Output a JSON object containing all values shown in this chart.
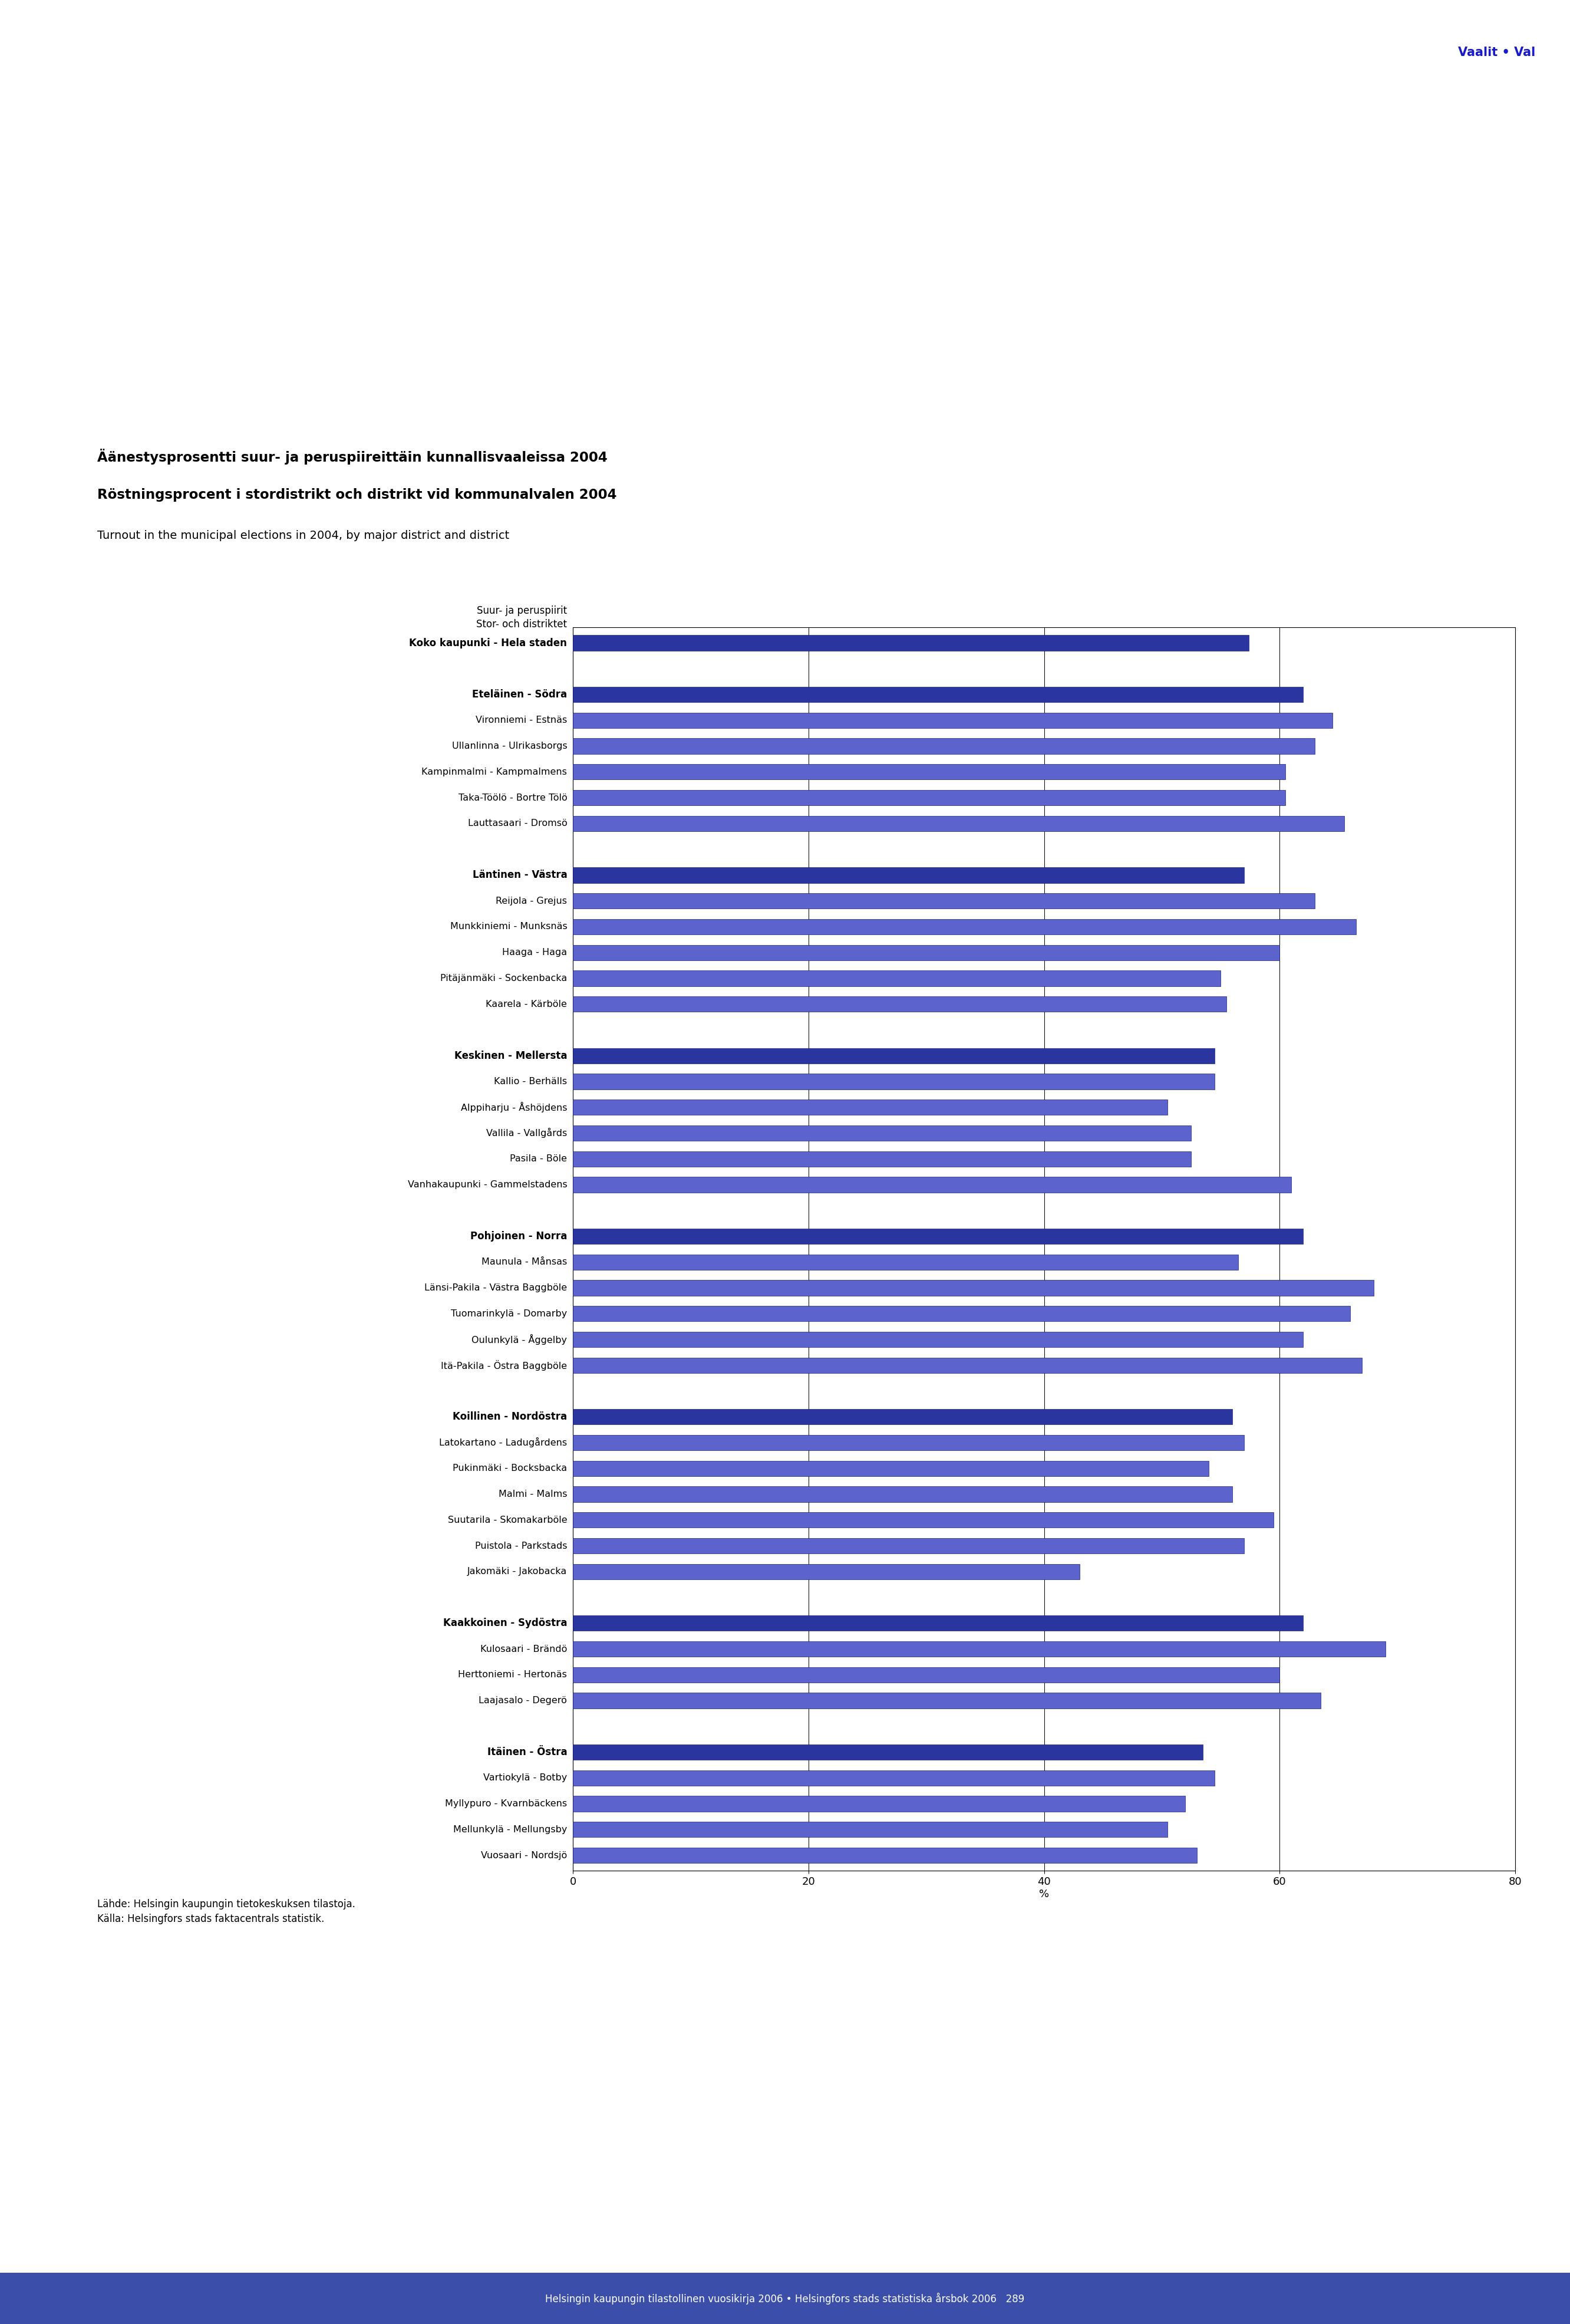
{
  "title_line1": "Äänestysprosentti suur- ja peruspiireittäin kunnallisvaaleissa 2004",
  "title_line2": "Röstningsprocent i stordistrikt och distrikt vid kommunalvalen 2004",
  "title_line3": "Turnout in the municipal elections in 2004, by major district and district",
  "header_label": "Vaalit • Val",
  "y_axis_label_fi": "Suur- ja peruspiirit",
  "y_axis_label_sv": "Stor- och distriktet",
  "x_label": "%",
  "footer": "Lähde: Helsingin kaupungin tietokeskuksen tilastoja.\nKälla: Helsingfors stads faktacentrals statistik.",
  "footer_page": "Helsingin kaupungin tilastollinen vuosikirja 2006 • Helsingfors stads statistiska årsbok 2006   289",
  "bars": [
    {
      "label": "Koko kaupunki - Hela staden",
      "value": 57.4,
      "bold": true,
      "color": "#2b35a0"
    },
    {
      "label": "",
      "value": null,
      "bold": false,
      "color": null
    },
    {
      "label": "Eteläinen - Södra",
      "value": 62.0,
      "bold": true,
      "color": "#2b35a0"
    },
    {
      "label": "Vironniemi - Estnäs",
      "value": 64.5,
      "bold": false,
      "color": "#5c63cc"
    },
    {
      "label": "Ullanlinna - Ulrikasborgs",
      "value": 63.0,
      "bold": false,
      "color": "#5c63cc"
    },
    {
      "label": "Kampinmalmi - Kampmalmens",
      "value": 60.5,
      "bold": false,
      "color": "#5c63cc"
    },
    {
      "label": "Taka-Töölö - Bortre Tölö",
      "value": 60.5,
      "bold": false,
      "color": "#5c63cc"
    },
    {
      "label": "Lauttasaari - Dromsö",
      "value": 65.5,
      "bold": false,
      "color": "#5c63cc"
    },
    {
      "label": "",
      "value": null,
      "bold": false,
      "color": null
    },
    {
      "label": "Läntinen - Västra",
      "value": 57.0,
      "bold": true,
      "color": "#2b35a0"
    },
    {
      "label": "Reijola - Grejus",
      "value": 63.0,
      "bold": false,
      "color": "#5c63cc"
    },
    {
      "label": "Munkkiniemi - Munksnäs",
      "value": 66.5,
      "bold": false,
      "color": "#5c63cc"
    },
    {
      "label": "Haaga - Haga",
      "value": 60.0,
      "bold": false,
      "color": "#5c63cc"
    },
    {
      "label": "Pitäjänmäki - Sockenbacka",
      "value": 55.0,
      "bold": false,
      "color": "#5c63cc"
    },
    {
      "label": "Kaarela - Kärböle",
      "value": 55.5,
      "bold": false,
      "color": "#5c63cc"
    },
    {
      "label": "",
      "value": null,
      "bold": false,
      "color": null
    },
    {
      "label": "Keskinen - Mellersta",
      "value": 54.5,
      "bold": true,
      "color": "#2b35a0"
    },
    {
      "label": "Kallio - Berhälls",
      "value": 54.5,
      "bold": false,
      "color": "#5c63cc"
    },
    {
      "label": "Alppiharju - Åshöjdens",
      "value": 50.5,
      "bold": false,
      "color": "#5c63cc"
    },
    {
      "label": "Vallila - Vallgårds",
      "value": 52.5,
      "bold": false,
      "color": "#5c63cc"
    },
    {
      "label": "Pasila - Böle",
      "value": 52.5,
      "bold": false,
      "color": "#5c63cc"
    },
    {
      "label": "Vanhakaupunki - Gammelstadens",
      "value": 61.0,
      "bold": false,
      "color": "#5c63cc"
    },
    {
      "label": "",
      "value": null,
      "bold": false,
      "color": null
    },
    {
      "label": "Pohjoinen - Norra",
      "value": 62.0,
      "bold": true,
      "color": "#2b35a0"
    },
    {
      "label": "Maunula - Månsas",
      "value": 56.5,
      "bold": false,
      "color": "#5c63cc"
    },
    {
      "label": "Länsi-Pakila - Västra Baggböle",
      "value": 68.0,
      "bold": false,
      "color": "#5c63cc"
    },
    {
      "label": "Tuomarinkylä - Domarby",
      "value": 66.0,
      "bold": false,
      "color": "#5c63cc"
    },
    {
      "label": "Oulunkylä - Åggelby",
      "value": 62.0,
      "bold": false,
      "color": "#5c63cc"
    },
    {
      "label": "Itä-Pakila - Östra Baggböle",
      "value": 67.0,
      "bold": false,
      "color": "#5c63cc"
    },
    {
      "label": "",
      "value": null,
      "bold": false,
      "color": null
    },
    {
      "label": "Koillinen - Nordöstra",
      "value": 56.0,
      "bold": true,
      "color": "#2b35a0"
    },
    {
      "label": "Latokartano - Ladugårdens",
      "value": 57.0,
      "bold": false,
      "color": "#5c63cc"
    },
    {
      "label": "Pukinmäki - Bocksbacka",
      "value": 54.0,
      "bold": false,
      "color": "#5c63cc"
    },
    {
      "label": "Malmi - Malms",
      "value": 56.0,
      "bold": false,
      "color": "#5c63cc"
    },
    {
      "label": "Suutarila - Skomakarböle",
      "value": 59.5,
      "bold": false,
      "color": "#5c63cc"
    },
    {
      "label": "Puistola - Parkstads",
      "value": 57.0,
      "bold": false,
      "color": "#5c63cc"
    },
    {
      "label": "Jakomäki - Jakobacka",
      "value": 43.0,
      "bold": false,
      "color": "#5c63cc"
    },
    {
      "label": "",
      "value": null,
      "bold": false,
      "color": null
    },
    {
      "label": "Kaakkoinen - Sydöstra",
      "value": 62.0,
      "bold": true,
      "color": "#2b35a0"
    },
    {
      "label": "Kulosaari - Brändö",
      "value": 69.0,
      "bold": false,
      "color": "#5c63cc"
    },
    {
      "label": "Herttoniemi - Hertonäs",
      "value": 60.0,
      "bold": false,
      "color": "#5c63cc"
    },
    {
      "label": "Laajasalo - Degerö",
      "value": 63.5,
      "bold": false,
      "color": "#5c63cc"
    },
    {
      "label": "",
      "value": null,
      "bold": false,
      "color": null
    },
    {
      "label": "Itäinen - Östra",
      "value": 53.5,
      "bold": true,
      "color": "#2b35a0"
    },
    {
      "label": "Vartiokylä - Botby",
      "value": 54.5,
      "bold": false,
      "color": "#5c63cc"
    },
    {
      "label": "Myllypuro - Kvarnbäckens",
      "value": 52.0,
      "bold": false,
      "color": "#5c63cc"
    },
    {
      "label": "Mellunkylä - Mellungsby",
      "value": 50.5,
      "bold": false,
      "color": "#5c63cc"
    },
    {
      "label": "Vuosaari - Nordsjö",
      "value": 53.0,
      "bold": false,
      "color": "#5c63cc"
    }
  ],
  "xlim": [
    0,
    80
  ],
  "xticks": [
    0,
    20,
    40,
    60,
    80
  ],
  "bg_color": "#ffffff",
  "header_color": "#1a1acc",
  "bar_border_color": "#1a1f80",
  "bottom_bar_color": "#3b4faa"
}
